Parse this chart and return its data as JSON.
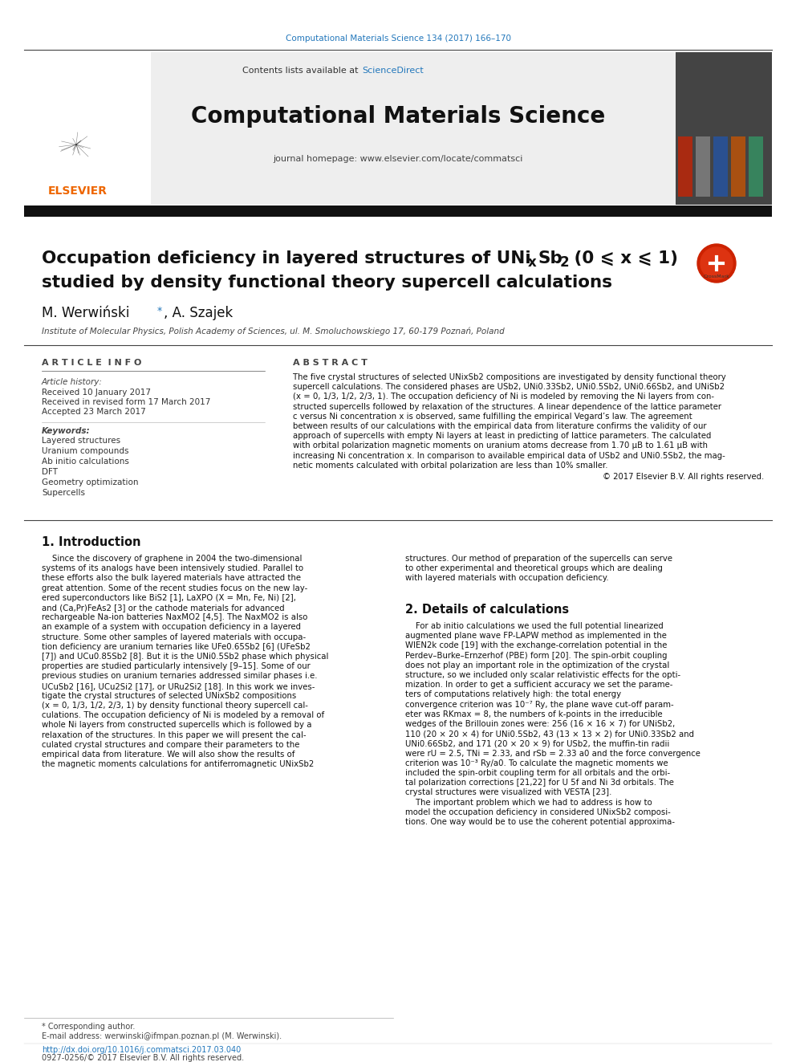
{
  "journal_ref": "Computational Materials Science 134 (2017) 166–170",
  "journal_name": "Computational Materials Science",
  "journal_homepage": "journal homepage: www.elsevier.com/locate/commatsci",
  "contents_text": "Contents lists available at ScienceDirect",
  "title_line1": "Occupation deficiency in layered structures of UNi",
  "title_sub_x": "x",
  "title_line1b": "Sb",
  "title_sub_2": "2",
  "title_line1c": " (0 ⩽ x ⩽ 1)",
  "title_line2": "studied by density functional theory supercell calculations",
  "authors": "M. Werwiński *, A. Szajek",
  "affiliation": "Institute of Molecular Physics, Polish Academy of Sciences, ul. M. Smoluchowskiego 17, 60-179 Poznań, Poland",
  "article_info_title": "A R T I C L E  I N F O",
  "abstract_title": "A B S T R A C T",
  "article_history_label": "Article history:",
  "received1": "Received 10 January 2017",
  "revised": "Received in revised form 17 March 2017",
  "accepted": "Accepted 23 March 2017",
  "keywords_label": "Keywords:",
  "keywords": [
    "Layered structures",
    "Uranium compounds",
    "Ab initio calculations",
    "DFT",
    "Geometry optimization",
    "Supercells"
  ],
  "copyright": "© 2017 Elsevier B.V. All rights reserved.",
  "section1_title": "1. Introduction",
  "section2_title": "2. Details of calculations",
  "bg_color": "#ffffff",
  "header_bg": "#eeeeee",
  "link_color": "#2277bb",
  "elsevier_orange": "#ee6600",
  "text_color": "#111111",
  "abstract_lines": [
    "The five crystal structures of selected UNixSb2 compositions are investigated by density functional theory",
    "supercell calculations. The considered phases are USb2, UNi0.33Sb2, UNi0.5Sb2, UNi0.66Sb2, and UNiSb2",
    "(x = 0, 1/3, 1/2, 2/3, 1). The occupation deficiency of Ni is modeled by removing the Ni layers from con-",
    "structed supercells followed by relaxation of the structures. A linear dependence of the lattice parameter",
    "c versus Ni concentration x is observed, same fulfilling the empirical Vegard’s law. The agreement",
    "between results of our calculations with the empirical data from literature confirms the validity of our",
    "approach of supercells with empty Ni layers at least in predicting of lattice parameters. The calculated",
    "with orbital polarization magnetic moments on uranium atoms decrease from 1.70 μB to 1.61 μB with",
    "increasing Ni concentration x. In comparison to available empirical data of USb2 and UNi0.5Sb2, the mag-",
    "netic moments calculated with orbital polarization are less than 10% smaller."
  ],
  "intro_left_lines": [
    "    Since the discovery of graphene in 2004 the two-dimensional",
    "systems of its analogs have been intensively studied. Parallel to",
    "these efforts also the bulk layered materials have attracted the",
    "great attention. Some of the recent studies focus on the new lay-",
    "ered superconductors like BiS2 [1], LaXPO (X = Mn, Fe, Ni) [2],",
    "and (Ca,Pr)FeAs2 [3] or the cathode materials for advanced",
    "rechargeable Na-ion batteries NaxMO2 [4,5]. The NaxMO2 is also",
    "an example of a system with occupation deficiency in a layered",
    "structure. Some other samples of layered materials with occupa-",
    "tion deficiency are uranium ternaries like UFe0.65Sb2 [6] (UFeSb2",
    "[7]) and UCu0.85Sb2 [8]. But it is the UNi0.5Sb2 phase which physical",
    "properties are studied particularly intensively [9–15]. Some of our",
    "previous studies on uranium ternaries addressed similar phases i.e.",
    "UCuSb2 [16], UCu2Si2 [17], or URu2Si2 [18]. In this work we inves-",
    "tigate the crystal structures of selected UNixSb2 compositions",
    "(x = 0, 1/3, 1/2, 2/3, 1) by density functional theory supercell cal-",
    "culations. The occupation deficiency of Ni is modeled by a removal of",
    "whole Ni layers from constructed supercells which is followed by a",
    "relaxation of the structures. In this paper we will present the cal-",
    "culated crystal structures and compare their parameters to the",
    "empirical data from literature. We will also show the results of",
    "the magnetic moments calculations for antiferromagnetic UNixSb2"
  ],
  "intro_right_lines": [
    "structures. Our method of preparation of the supercells can serve",
    "to other experimental and theoretical groups which are dealing",
    "with layered materials with occupation deficiency."
  ],
  "details_right_lines": [
    "    For ab initio calculations we used the full potential linearized",
    "augmented plane wave FP-LAPW method as implemented in the",
    "WIEN2k code [19] with the exchange-correlation potential in the",
    "Perdev–Burke–Ernzerhof (PBE) form [20]. The spin-orbit coupling",
    "does not play an important role in the optimization of the crystal",
    "structure, so we included only scalar relativistic effects for the opti-",
    "mization. In order to get a sufficient accuracy we set the parame-",
    "ters of computations relatively high: the total energy",
    "convergence criterion was 10⁻⁷ Ry, the plane wave cut-off param-",
    "eter was RKmax = 8, the numbers of k-points in the irreducible",
    "wedges of the Brillouin zones were: 256 (16 × 16 × 7) for UNiSb2,",
    "110 (20 × 20 × 4) for UNi0.5Sb2, 43 (13 × 13 × 2) for UNi0.33Sb2 and",
    "UNi0.66Sb2, and 171 (20 × 20 × 9) for USb2, the muffin-tin radii",
    "were rU = 2.5, TNi = 2.33, and rSb = 2.33 a0 and the force convergence",
    "criterion was 10⁻³ Ry/a0. To calculate the magnetic moments we",
    "included the spin-orbit coupling term for all orbitals and the orbi-",
    "tal polarization corrections [21,22] for U 5f and Ni 3d orbitals. The",
    "crystal structures were visualized with VESTA [23].",
    "    The important problem which we had to address is how to",
    "model the occupation deficiency in considered UNixSb2 composi-",
    "tions. One way would be to use the coherent potential approxima-"
  ],
  "footer_doi": "http://dx.doi.org/10.1016/j.commatsci.2017.03.040",
  "footer_issn": "0927-0256/© 2017 Elsevier B.V. All rights reserved.",
  "footer_star": "* Corresponding author.",
  "footer_email": "E-mail address: werwinski@ifmpan.poznan.pl (M. Werwinski)."
}
